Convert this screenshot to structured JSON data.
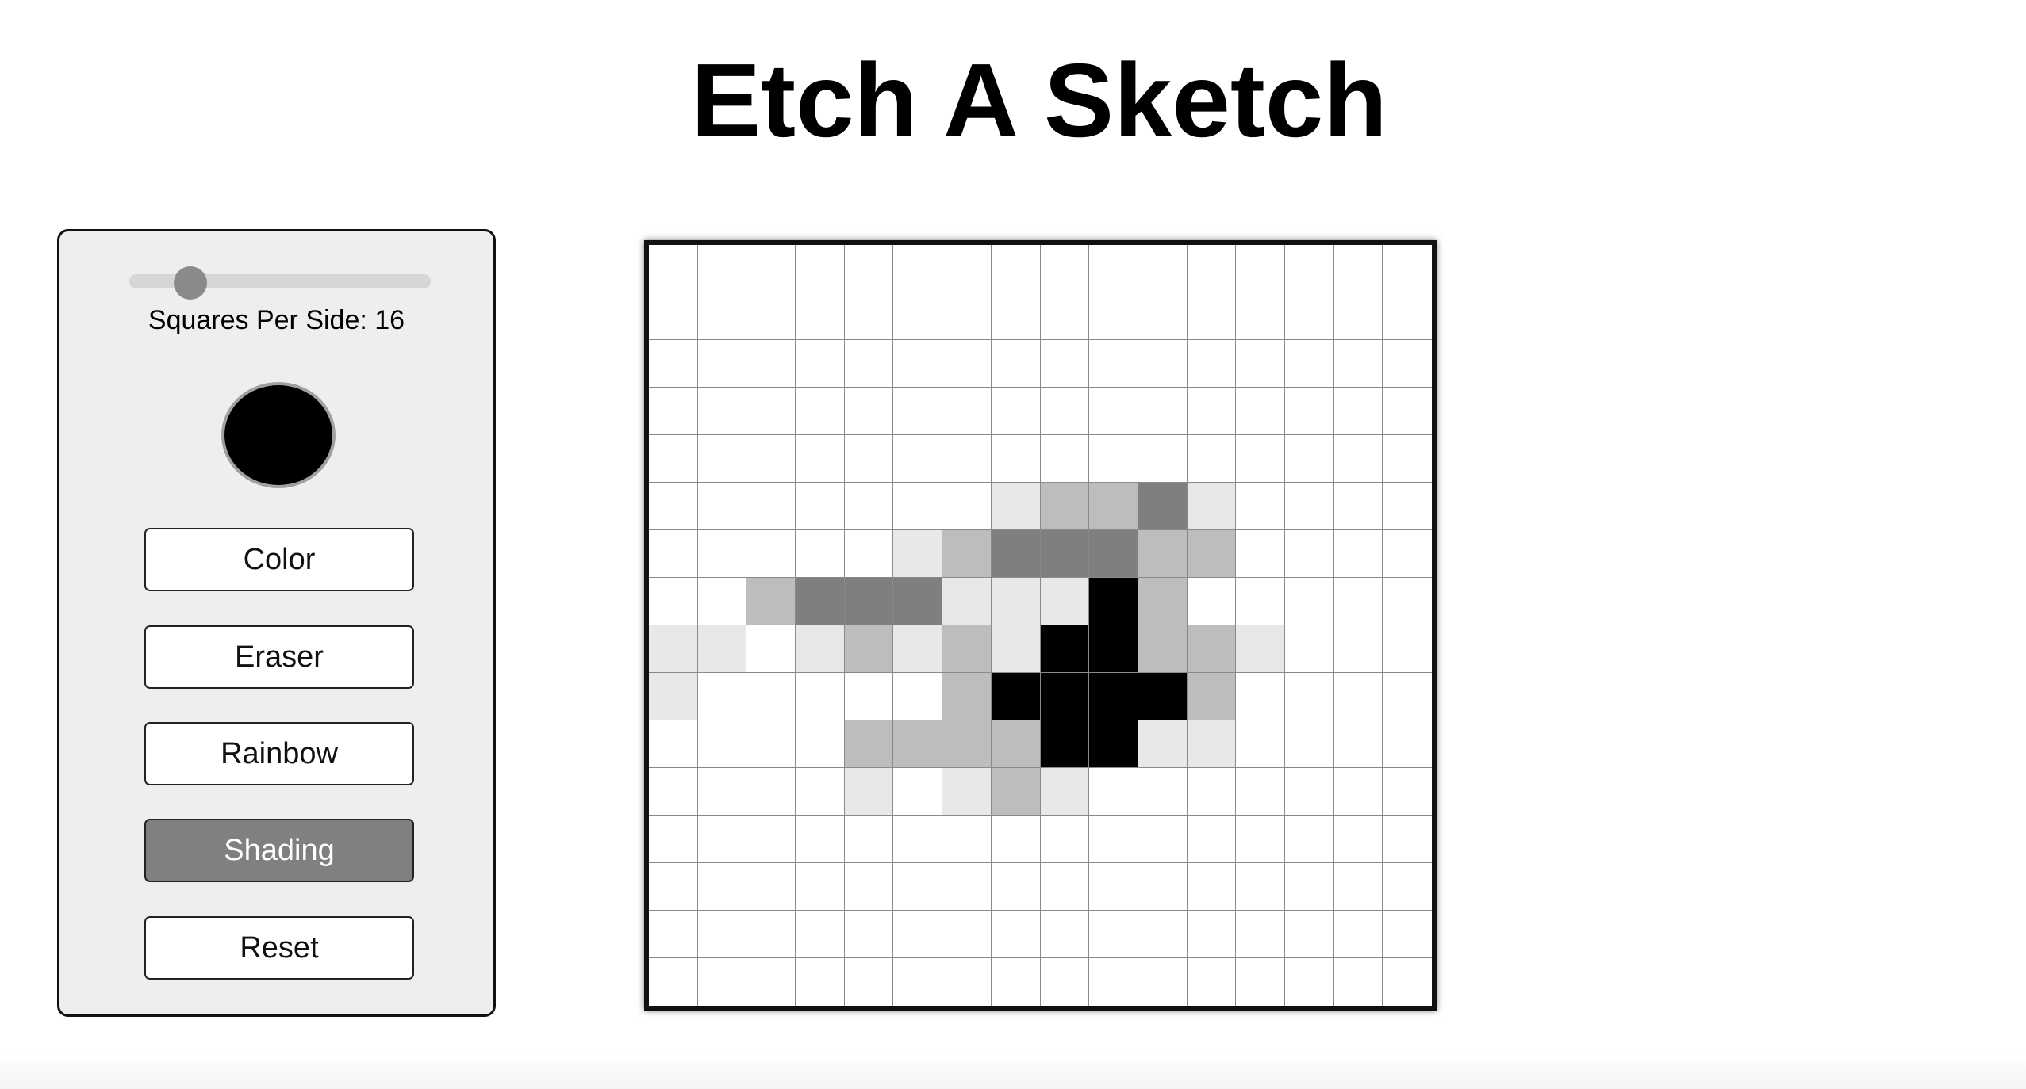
{
  "page": {
    "title": "Etch A Sketch"
  },
  "controls": {
    "slider": {
      "min": 1,
      "max": 100,
      "value": 16,
      "label": "Squares Per Side: 16"
    },
    "color_picker": {
      "value": "#000000"
    },
    "buttons": {
      "color": "Color",
      "eraser": "Eraser",
      "rainbow": "Rainbow",
      "shading": "Shading",
      "reset": "Reset"
    },
    "active_mode": "shading"
  },
  "grid": {
    "size": 16,
    "shade_colors": [
      "#ffffff",
      "#e8e8e8",
      "#bdbdbd",
      "#7f7f7f",
      "#000000"
    ],
    "rows": [
      "0000000000000000",
      "0000000000000000",
      "0000000000000000",
      "0000000000000000",
      "0000000000000000",
      "0000000122310000",
      "0000012333220000",
      "0023331114200000",
      "1101212144221000",
      "1000002444420000",
      "0000222244110000",
      "0000101210000000",
      "0000000000000000",
      "0000000000000000",
      "0000000000000000",
      "0000000000000000"
    ]
  }
}
